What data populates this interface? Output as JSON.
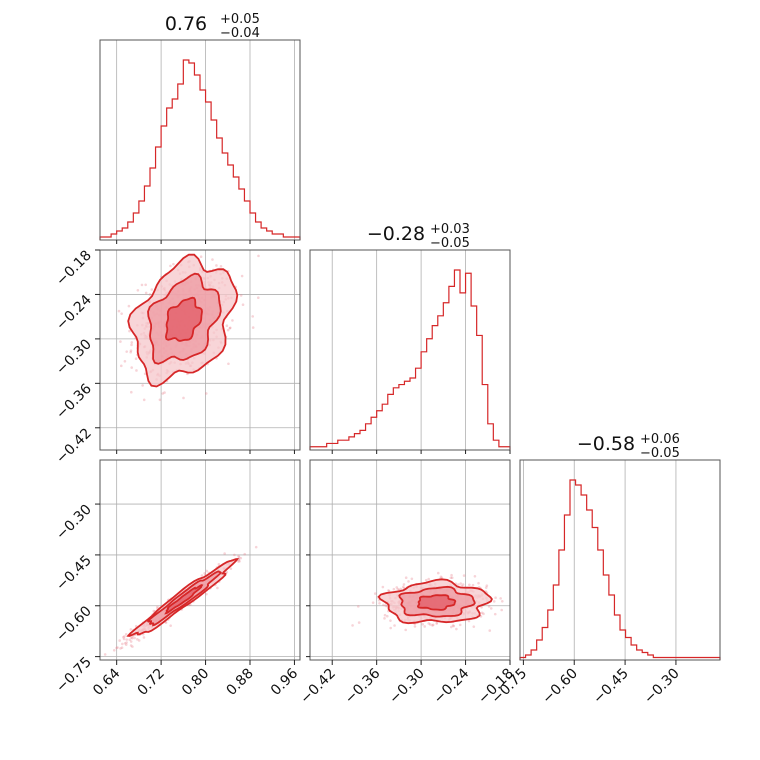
{
  "chart_data": {
    "type": "corner",
    "titles": [
      {
        "median": "0.76",
        "plus": "+0.05",
        "minus": "−0.04"
      },
      {
        "median": "−0.28",
        "plus": "+0.03",
        "minus": "−0.05"
      },
      {
        "median": "−0.58",
        "plus": "+0.06",
        "minus": "−0.05"
      }
    ],
    "params": [
      {
        "range": [
          0.61,
          0.97
        ],
        "ticks": [
          0.64,
          0.72,
          0.8,
          0.88,
          0.96
        ],
        "tick_labels": [
          "0.64",
          "0.72",
          "0.80",
          "0.88",
          "0.96"
        ]
      },
      {
        "range": [
          -0.45,
          -0.18
        ],
        "ticks": [
          -0.42,
          -0.36,
          -0.3,
          -0.24,
          -0.18
        ],
        "tick_labels": [
          "−0.42",
          "−0.36",
          "−0.30",
          "−0.24",
          "−0.18"
        ]
      },
      {
        "range": [
          -0.76,
          -0.17
        ],
        "ticks": [
          -0.75,
          -0.6,
          -0.45,
          -0.3
        ],
        "tick_labels": [
          "−0.75",
          "−0.60",
          "−0.45",
          "−0.30"
        ]
      }
    ],
    "histograms": [
      {
        "edges_min": 0.61,
        "edges_max": 0.97,
        "counts": [
          1,
          1,
          2,
          3,
          4,
          6,
          9,
          13,
          18,
          24,
          31,
          38,
          44,
          47,
          52,
          60,
          59,
          55,
          50,
          46,
          40,
          34,
          29,
          25,
          21,
          17,
          13,
          9,
          6,
          4,
          3,
          2,
          2,
          1,
          1,
          1
        ]
      },
      {
        "edges_min": -0.45,
        "edges_max": -0.18,
        "counts": [
          1,
          1,
          1,
          2,
          2,
          3,
          3,
          4,
          5,
          6,
          8,
          10,
          12,
          14,
          17,
          19,
          20,
          21,
          22,
          25,
          30,
          34,
          38,
          41,
          45,
          50,
          55,
          48,
          54,
          44,
          35,
          20,
          8,
          3,
          1,
          1
        ]
      },
      {
        "edges_min": -0.76,
        "edges_max": -0.17,
        "counts": [
          1,
          2,
          4,
          8,
          13,
          20,
          30,
          44,
          58,
          72,
          70,
          66,
          60,
          53,
          44,
          34,
          26,
          18,
          12,
          9,
          6,
          4,
          3,
          2,
          1,
          1,
          1,
          1,
          1,
          1,
          1,
          1,
          1,
          1,
          1,
          1
        ]
      }
    ],
    "pairs": [
      {
        "x": 0,
        "y": 1,
        "center": [
          0.76,
          -0.275
        ],
        "sd": [
          0.045,
          0.04
        ],
        "corr": 0.3
      },
      {
        "x": 0,
        "y": 2,
        "center": [
          0.76,
          -0.58
        ],
        "sd": [
          0.045,
          0.055
        ],
        "corr": 0.97
      },
      {
        "x": 1,
        "y": 2,
        "center": [
          -0.28,
          -0.59
        ],
        "sd": [
          0.035,
          0.03
        ],
        "corr": 0.05
      }
    ],
    "grid": true,
    "color": "#d62728"
  }
}
